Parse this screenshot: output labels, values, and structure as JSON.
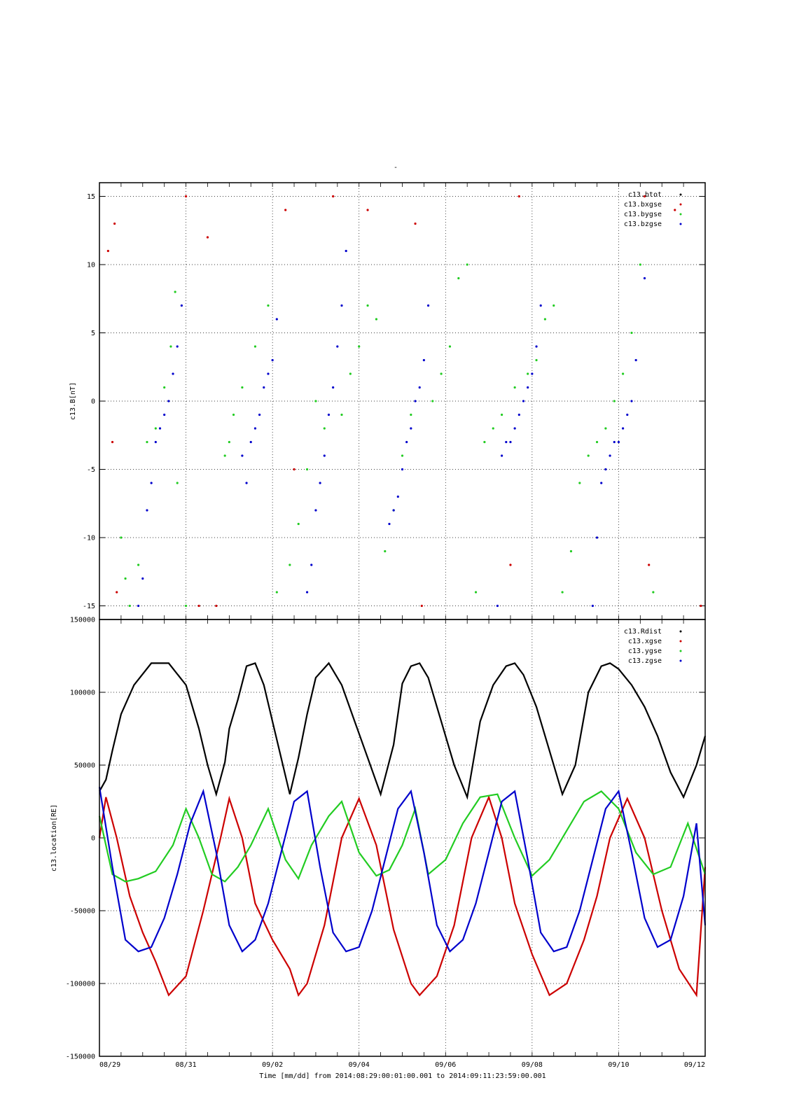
{
  "title_mark": "-",
  "footer": "Time [mm/dd]  from 2014:08:29:00:01:00.001  to  2014:09:11:23:59:00.001",
  "x_ticks": [
    "08/29",
    "08/31",
    "09/02",
    "09/04",
    "09/06",
    "09/08",
    "09/10",
    "09/12"
  ],
  "colors": {
    "black": "#000000",
    "red": "#cc0000",
    "green": "#22cc22",
    "blue": "#0000cc"
  },
  "chart_data": [
    {
      "type": "scatter",
      "ylabel": "c13.B[nT]",
      "xlim": [
        "2014-08-29",
        "2014-09-12"
      ],
      "ylim": [
        -16,
        16
      ],
      "y_ticks": [
        "15",
        "10",
        "5",
        "0",
        "-5",
        "-10",
        "-15"
      ],
      "grid": true,
      "legend_position": "top-right",
      "series": [
        {
          "name": "c13.btot",
          "color": "black",
          "note_points_day_value": []
        },
        {
          "name": "c13.bxgse",
          "color": "red",
          "x": [
            0.2,
            0.3,
            0.4,
            0.35,
            2.0,
            2.3,
            2.5,
            2.7,
            4.3,
            4.5,
            5.4,
            6.2,
            7.3,
            7.45,
            9.7,
            9.5,
            12.6,
            12.7,
            13.3,
            13.9
          ],
          "y": [
            11,
            -3,
            -14,
            13,
            15,
            -15,
            12,
            -15,
            14,
            -5,
            15,
            14,
            13,
            -15,
            15,
            -12,
            15,
            -12,
            14,
            -15
          ]
        },
        {
          "name": "c13.bygse",
          "color": "green",
          "x": [
            0.5,
            0.6,
            0.7,
            0.9,
            1.1,
            1.3,
            1.5,
            1.65,
            1.75,
            1.8,
            2.0,
            2.9,
            3.0,
            3.1,
            3.3,
            3.6,
            3.9,
            4.1,
            4.4,
            4.6,
            4.8,
            5.0,
            5.2,
            5.6,
            5.8,
            6.0,
            6.2,
            6.4,
            6.6,
            6.8,
            7.0,
            7.2,
            7.7,
            7.9,
            8.1,
            8.3,
            8.5,
            8.7,
            8.9,
            9.1,
            9.3,
            9.6,
            9.9,
            10.1,
            10.3,
            10.5,
            10.7,
            10.9,
            11.1,
            11.3,
            11.5,
            11.7,
            11.9,
            12.1,
            12.3,
            12.5,
            12.8
          ],
          "y": [
            -10,
            -13,
            -15,
            -12,
            -3,
            -2,
            1,
            4,
            8,
            -6,
            -15,
            -4,
            -3,
            -1,
            1,
            4,
            7,
            -14,
            -12,
            -9,
            -5,
            0,
            -2,
            -1,
            2,
            4,
            7,
            6,
            -11,
            -8,
            -4,
            -1,
            0,
            2,
            4,
            9,
            10,
            -14,
            -3,
            -2,
            -1,
            1,
            2,
            3,
            6,
            7,
            -14,
            -11,
            -6,
            -4,
            -3,
            -2,
            0,
            2,
            5,
            10,
            -14
          ]
        },
        {
          "name": "c13.bzgse",
          "color": "blue",
          "x": [
            0.9,
            1.0,
            1.1,
            1.2,
            1.3,
            1.4,
            1.5,
            1.6,
            1.7,
            1.8,
            1.9,
            3.3,
            3.4,
            3.5,
            3.6,
            3.7,
            3.8,
            3.9,
            4.0,
            4.1,
            4.8,
            4.9,
            5.0,
            5.1,
            5.2,
            5.3,
            5.4,
            5.5,
            5.6,
            5.7,
            6.7,
            6.8,
            6.9,
            7.0,
            7.1,
            7.2,
            7.3,
            7.4,
            7.5,
            7.6,
            9.2,
            9.3,
            9.4,
            9.5,
            9.6,
            9.7,
            9.8,
            9.9,
            10.0,
            10.1,
            10.2,
            11.4,
            11.5,
            11.6,
            11.7,
            11.8,
            11.9,
            12.0,
            12.1,
            12.2,
            12.3,
            12.4,
            12.6
          ],
          "y": [
            -15,
            -13,
            -8,
            -6,
            -3,
            -2,
            -1,
            0,
            2,
            4,
            7,
            -4,
            -6,
            -3,
            -2,
            -1,
            1,
            2,
            3,
            6,
            -14,
            -12,
            -8,
            -6,
            -4,
            -1,
            1,
            4,
            7,
            11,
            -9,
            -8,
            -7,
            -5,
            -3,
            -2,
            0,
            1,
            3,
            7,
            -15,
            -4,
            -3,
            -3,
            -2,
            -1,
            0,
            1,
            2,
            4,
            7,
            -15,
            -10,
            -6,
            -5,
            -4,
            -3,
            -3,
            -2,
            -1,
            0,
            3,
            9
          ]
        }
      ]
    },
    {
      "type": "line",
      "ylabel": "c13.location[RE]",
      "xlim": [
        "2014-08-29",
        "2014-09-12"
      ],
      "ylim": [
        -150000,
        150000
      ],
      "y_ticks": [
        "150000",
        "100000",
        "50000",
        "0",
        "-50000",
        "-100000",
        "-150000"
      ],
      "grid": true,
      "legend_position": "top-right",
      "series": [
        {
          "name": "c13.Rdist",
          "color": "black",
          "x": [
            0.0,
            0.15,
            0.3,
            0.5,
            0.8,
            1.2,
            1.6,
            2.0,
            2.3,
            2.5,
            2.7,
            2.9,
            3.0,
            3.2,
            3.4,
            3.6,
            3.8,
            4.0,
            4.2,
            4.4,
            4.6,
            4.8,
            5.0,
            5.3,
            5.6,
            5.9,
            6.2,
            6.5,
            6.8,
            7.0,
            7.2,
            7.4,
            7.6,
            7.9,
            8.2,
            8.5,
            8.8,
            9.1,
            9.4,
            9.6,
            9.8,
            10.1,
            10.4,
            10.7,
            11.0,
            11.3,
            11.6,
            11.8,
            12.0,
            12.3,
            12.6,
            12.9,
            13.2,
            13.5,
            13.8,
            14.0
          ],
          "y": [
            32000,
            40000,
            60000,
            85000,
            105000,
            120000,
            120000,
            105000,
            75000,
            50000,
            30000,
            52000,
            75000,
            95000,
            118000,
            120000,
            105000,
            80000,
            55000,
            30000,
            55000,
            85000,
            110000,
            120000,
            105000,
            80000,
            55000,
            30000,
            64000,
            106000,
            118000,
            120000,
            110000,
            80000,
            50000,
            28000,
            80000,
            105000,
            118000,
            120000,
            112000,
            90000,
            60000,
            30000,
            50000,
            100000,
            118000,
            120000,
            116000,
            105000,
            90000,
            70000,
            45000,
            28000,
            50000,
            70000
          ]
        },
        {
          "name": "c13.xgse",
          "color": "red",
          "x": [
            0.0,
            0.15,
            0.4,
            0.7,
            1.0,
            1.3,
            1.6,
            2.0,
            2.4,
            2.8,
            3.0,
            3.3,
            3.6,
            4.0,
            4.4,
            4.6,
            4.8,
            5.2,
            5.6,
            6.0,
            6.4,
            6.8,
            7.2,
            7.4,
            7.8,
            8.2,
            8.6,
            9.0,
            9.3,
            9.6,
            10.0,
            10.4,
            10.8,
            11.2,
            11.5,
            11.8,
            12.2,
            12.6,
            13.0,
            13.4,
            13.8,
            14.0
          ],
          "y": [
            0,
            28000,
            0,
            -40000,
            -65000,
            -85000,
            -108000,
            -95000,
            -50000,
            0,
            27000,
            0,
            -45000,
            -70000,
            -90000,
            -108000,
            -100000,
            -60000,
            0,
            27000,
            -5000,
            -63000,
            -100000,
            -108000,
            -95000,
            -60000,
            0,
            28000,
            0,
            -45000,
            -80000,
            -108000,
            -100000,
            -70000,
            -40000,
            0,
            27000,
            0,
            -50000,
            -90000,
            -108000,
            -20000
          ]
        },
        {
          "name": "c13.ygse",
          "color": "green",
          "x": [
            0.0,
            0.3,
            0.6,
            0.9,
            1.3,
            1.7,
            2.0,
            2.3,
            2.6,
            2.9,
            3.2,
            3.5,
            3.9,
            4.3,
            4.6,
            4.9,
            5.3,
            5.6,
            6.0,
            6.4,
            6.7,
            7.0,
            7.3,
            7.6,
            8.0,
            8.4,
            8.8,
            9.2,
            9.6,
            10.0,
            10.4,
            10.8,
            11.2,
            11.6,
            12.0,
            12.4,
            12.8,
            13.2,
            13.6,
            14.0
          ],
          "y": [
            15000,
            -25000,
            -30000,
            -28000,
            -23000,
            -5000,
            20000,
            0,
            -25000,
            -30000,
            -20000,
            -5000,
            20000,
            -15000,
            -28000,
            -5000,
            15000,
            25000,
            -10000,
            -26000,
            -22000,
            -5000,
            20000,
            -25000,
            -15000,
            10000,
            28000,
            30000,
            0,
            -26000,
            -15000,
            5000,
            25000,
            32000,
            20000,
            -10000,
            -25000,
            -20000,
            10000,
            -25000
          ]
        },
        {
          "name": "c13.zgse",
          "color": "blue",
          "x": [
            0.0,
            0.3,
            0.6,
            0.9,
            1.2,
            1.5,
            1.8,
            2.1,
            2.4,
            2.7,
            3.0,
            3.3,
            3.6,
            3.9,
            4.2,
            4.5,
            4.8,
            5.1,
            5.4,
            5.7,
            6.0,
            6.3,
            6.6,
            6.9,
            7.2,
            7.5,
            7.8,
            8.1,
            8.4,
            8.7,
            9.0,
            9.3,
            9.6,
            9.9,
            10.2,
            10.5,
            10.8,
            11.1,
            11.4,
            11.7,
            12.0,
            12.3,
            12.6,
            12.9,
            13.2,
            13.5,
            13.8,
            14.0
          ],
          "y": [
            35000,
            -20000,
            -70000,
            -78000,
            -75000,
            -55000,
            -25000,
            10000,
            32000,
            -10000,
            -60000,
            -78000,
            -70000,
            -45000,
            -10000,
            25000,
            32000,
            -20000,
            -65000,
            -78000,
            -75000,
            -50000,
            -15000,
            20000,
            32000,
            -10000,
            -60000,
            -78000,
            -70000,
            -45000,
            -10000,
            25000,
            32000,
            -15000,
            -65000,
            -78000,
            -75000,
            -50000,
            -15000,
            20000,
            32000,
            -10000,
            -55000,
            -75000,
            -70000,
            -40000,
            10000,
            -60000
          ]
        }
      ]
    }
  ]
}
